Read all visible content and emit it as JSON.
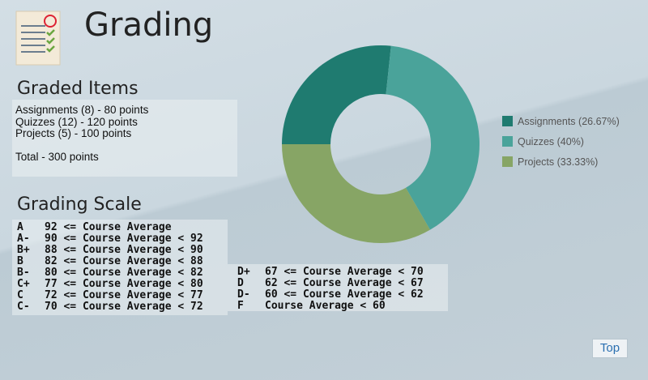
{
  "header": {
    "title": "Grading"
  },
  "graded_items": {
    "title": "Graded Items",
    "lines": [
      "Assignments (8) - 80 points",
      "Quizzes (12) - 120 points",
      "Projects (5) - 100 points"
    ],
    "total": "Total - 300 points"
  },
  "grading_scale": {
    "title": "Grading Scale",
    "left": [
      [
        "A",
        "92 <= Course Average"
      ],
      [
        "A-",
        "90 <= Course Average < 92"
      ],
      [
        "B+",
        "88 <= Course Average < 90"
      ],
      [
        "B",
        "82 <= Course Average < 88"
      ],
      [
        "B-",
        "80 <= Course Average < 82"
      ],
      [
        "C+",
        "77 <= Course Average < 80"
      ],
      [
        "C",
        "72 <= Course Average < 77"
      ],
      [
        "C-",
        "70 <= Course Average < 72"
      ]
    ],
    "right": [
      [
        "D+",
        "67 <= Course Average < 70"
      ],
      [
        "D",
        "62 <= Course Average < 67"
      ],
      [
        "D-",
        "60 <= Course Average < 62"
      ],
      [
        "F",
        "Course Average < 60"
      ]
    ]
  },
  "chart_data": {
    "type": "pie",
    "categories": [
      "Assignments (26.67%)",
      "Quizzes (40%)",
      "Projects (33.33%)"
    ],
    "values": [
      26.67,
      40,
      33.33
    ],
    "colors": [
      "#1f7b70",
      "#4aa39a",
      "#87a565"
    ]
  },
  "nav": {
    "top": "Top"
  }
}
